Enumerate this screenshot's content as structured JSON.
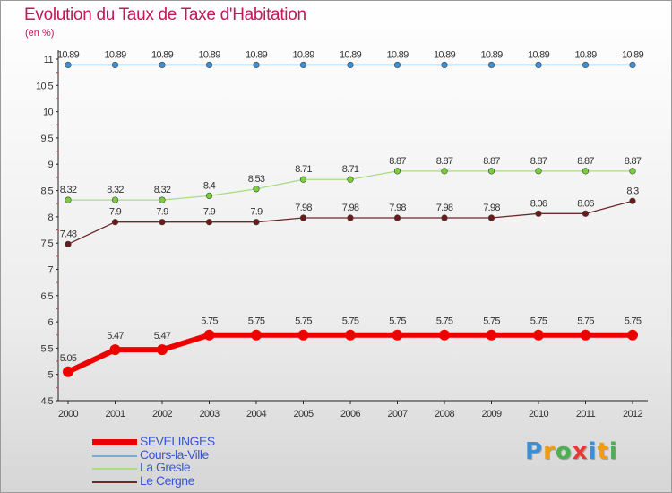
{
  "chart_data": {
    "type": "line",
    "title": "Evolution du Taux de Taxe d'Habitation",
    "ylabel": "(en %)",
    "xlabel": "",
    "x": [
      "2000",
      "2001",
      "2002",
      "2003",
      "2004",
      "2005",
      "2006",
      "2007",
      "2008",
      "2009",
      "2010",
      "2011",
      "2012"
    ],
    "yticks": [
      "4.5",
      "5",
      "5.5",
      "6",
      "6.5",
      "7",
      "7.5",
      "8",
      "8.5",
      "9",
      "9.5",
      "10",
      "10.5",
      "11"
    ],
    "ylim": [
      4.5,
      11
    ],
    "series": [
      {
        "name": "SEVELINGES",
        "color": "#ee0000",
        "values": [
          5.05,
          5.47,
          5.47,
          5.75,
          5.75,
          5.75,
          5.75,
          5.75,
          5.75,
          5.75,
          5.75,
          5.75,
          5.75
        ],
        "labels": [
          "5.05",
          "5.47",
          "5.47",
          "5.75",
          "5.75",
          "5.75",
          "5.75",
          "5.75",
          "5.75",
          "5.75",
          "5.75",
          "5.75",
          "5.75"
        ]
      },
      {
        "name": "Cours-la-Ville",
        "color": "#7fa8cf",
        "values": [
          10.89,
          10.89,
          10.89,
          10.89,
          10.89,
          10.89,
          10.89,
          10.89,
          10.89,
          10.89,
          10.89,
          10.89,
          10.89
        ],
        "labels": [
          "10.89",
          "10.89",
          "10.89",
          "10.89",
          "10.89",
          "10.89",
          "10.89",
          "10.89",
          "10.89",
          "10.89",
          "10.89",
          "10.89",
          "10.89"
        ]
      },
      {
        "name": "La Gresle",
        "color": "#a8dc84",
        "values": [
          8.32,
          8.32,
          8.32,
          8.4,
          8.53,
          8.71,
          8.71,
          8.87,
          8.87,
          8.87,
          8.87,
          8.87,
          8.87
        ],
        "labels": [
          "8.32",
          "8.32",
          "8.32",
          "8.4",
          "8.53",
          "8.71",
          "8.71",
          "8.87",
          "8.87",
          "8.87",
          "8.87",
          "8.87",
          "8.87"
        ]
      },
      {
        "name": "Le Cergne",
        "color": "#6b2a2a",
        "values": [
          7.48,
          7.9,
          7.9,
          7.9,
          7.9,
          7.98,
          7.98,
          7.98,
          7.98,
          7.98,
          8.06,
          8.06,
          8.3
        ],
        "labels": [
          "7.48",
          "7.9",
          "7.9",
          "7.9",
          "7.9",
          "7.98",
          "7.98",
          "7.98",
          "7.98",
          "7.98",
          "8.06",
          "8.06",
          "8.3"
        ]
      }
    ],
    "legend_position": "bottom-left",
    "grid": false
  },
  "logo": {
    "text": "Proxiti",
    "letters": [
      "P",
      "r",
      "o",
      "x",
      "i",
      "t",
      "i"
    ],
    "colors": [
      "#3b8fd9",
      "#f39c12",
      "#4caf50",
      "#e53935",
      "#3b8fd9",
      "#f39c12",
      "#4caf50"
    ]
  }
}
